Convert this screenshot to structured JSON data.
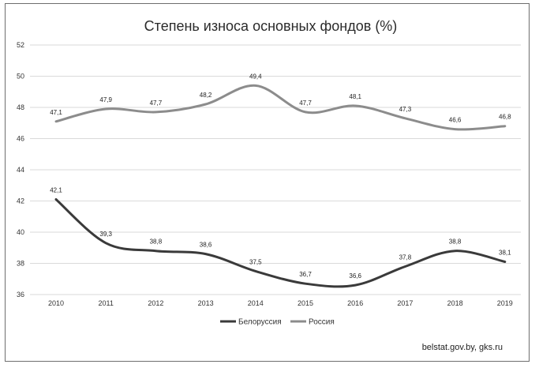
{
  "chart_data": {
    "type": "line",
    "title": "Степень износа основных фондов (%)",
    "categories": [
      "2010",
      "2011",
      "2012",
      "2013",
      "2014",
      "2015",
      "2016",
      "2017",
      "2018",
      "2019"
    ],
    "y_ticks": [
      "52",
      "50",
      "48",
      "46",
      "44",
      "42",
      "40",
      "38",
      "36"
    ],
    "ylim": [
      36,
      52
    ],
    "grid": true,
    "legend_position": "bottom",
    "series": [
      {
        "name": "Белоруссия",
        "color": "#3a3a3a",
        "values": [
          42.1,
          39.3,
          38.8,
          38.6,
          37.5,
          36.7,
          36.6,
          37.8,
          38.8,
          38.1
        ],
        "labels": [
          "42,1",
          "39,3",
          "38,8",
          "38,6",
          "37,5",
          "36,7",
          "36,6",
          "37,8",
          "38,8",
          "38,1"
        ]
      },
      {
        "name": "Россия",
        "color": "#8c8c8c",
        "values": [
          47.1,
          47.9,
          47.7,
          48.2,
          49.4,
          47.7,
          48.1,
          47.3,
          46.6,
          46.8
        ],
        "labels": [
          "47,1",
          "47,9",
          "47,7",
          "48,2",
          "49,4",
          "47,7",
          "48,1",
          "47,3",
          "46,6",
          "46,8"
        ]
      }
    ]
  },
  "source": "belstat.gov.by,  gks.ru"
}
